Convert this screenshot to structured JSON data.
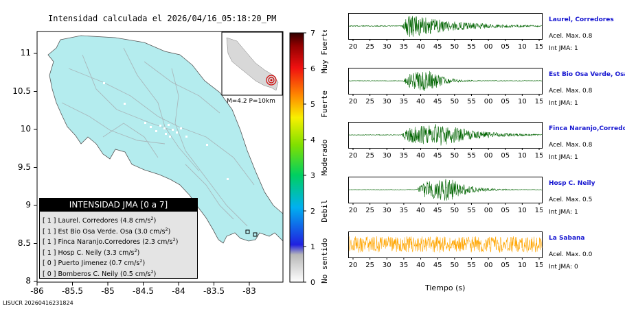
{
  "map": {
    "title": "Intensidad calculada el 2026/04/16_05:18:20_PM",
    "lat_ticks": [
      "11",
      "10.5",
      "10",
      "9.5",
      "9",
      "8.5",
      "8"
    ],
    "lon_ticks": [
      "-86",
      "-85.5",
      "-85",
      "-84.5",
      "-84",
      "-83.5",
      "-83"
    ],
    "inset_label": "M=4.2 P=10km",
    "land_color": "#b4ecee",
    "footer_id": "LISUCR 20260416231824"
  },
  "colorbar": {
    "values": [
      "7",
      "6",
      "5",
      "4",
      "3",
      "2",
      "1",
      "0"
    ],
    "category_labels": [
      {
        "name": "Muy Fuerte",
        "level": 6.5
      },
      {
        "name": "Fuerte",
        "level": 5.0
      },
      {
        "name": "Moderado",
        "level": 3.5
      },
      {
        "name": "Debil",
        "level": 2.0
      },
      {
        "name": "No sentido",
        "level": 0.6
      }
    ]
  },
  "legend": {
    "header": "INTENSIDAD JMA [0 a 7]",
    "items": [
      {
        "int": "[ 1 ]",
        "name": "Laurel. Corredores",
        "accel": "(4.8 cm/s",
        "unit_exp": "2",
        "close": ")"
      },
      {
        "int": "[ 1 ]",
        "name": "Est Bio Osa Verde. Osa",
        "accel": "(3.0 cm/s",
        "unit_exp": "2",
        "close": ")"
      },
      {
        "int": "[ 1 ]",
        "name": "Finca Naranjo.Corredores",
        "accel": "(2.3 cm/s",
        "unit_exp": "2",
        "close": ")"
      },
      {
        "int": "[ 1 ]",
        "name": "Hosp C. Neily",
        "accel": "(3.3 cm/s",
        "unit_exp": "2",
        "close": ")"
      },
      {
        "int": "[ 0 ]",
        "name": "Puerto Jimenez",
        "accel": "(0.7 cm/s",
        "unit_exp": "2",
        "close": ")"
      },
      {
        "int": "[ 0 ]",
        "name": "Bomberos C. Neily",
        "accel": "(0.5 cm/s",
        "unit_exp": "2",
        "close": ")"
      }
    ]
  },
  "traces": {
    "x_ticks": [
      "20",
      "25",
      "30",
      "35",
      "40",
      "45",
      "50",
      "55",
      "00",
      "05",
      "10",
      "15"
    ],
    "x_title": "Tiempo (s)",
    "items": [
      {
        "name": "Laurel, Corredores",
        "accel": "Acel. Max. 0.8",
        "jma": "Int JMA: 1",
        "color": "#006400",
        "onset": 0.27,
        "peak": 0.32,
        "decay": 0.25,
        "noise": 0.04
      },
      {
        "name": "Est Bio Osa Verde, Osa",
        "accel": "Acel. Max. 0.8",
        "jma": "Int JMA: 1",
        "color": "#006400",
        "onset": 0.28,
        "peak": 0.42,
        "decay": 0.07,
        "noise": 0.02
      },
      {
        "name": "Finca Naranjo,Corredores",
        "accel": "Acel. Max. 0.8",
        "jma": "Int JMA: 1",
        "color": "#006400",
        "onset": 0.27,
        "peak": 0.48,
        "decay": 0.18,
        "noise": 0.03
      },
      {
        "name": "Hosp C. Neily",
        "accel": "Acel. Max. 0.5",
        "jma": "Int JMA: 1",
        "color": "#006400",
        "onset": 0.35,
        "peak": 0.52,
        "decay": 0.1,
        "noise": 0.02
      },
      {
        "name": "La Sabana",
        "accel": "Acel. Max. 0.0",
        "jma": "Int JMA: 0",
        "color": "#ffa500",
        "onset": 0.0,
        "peak": 0.0,
        "decay": 0.0,
        "noise": 0.7
      }
    ]
  }
}
